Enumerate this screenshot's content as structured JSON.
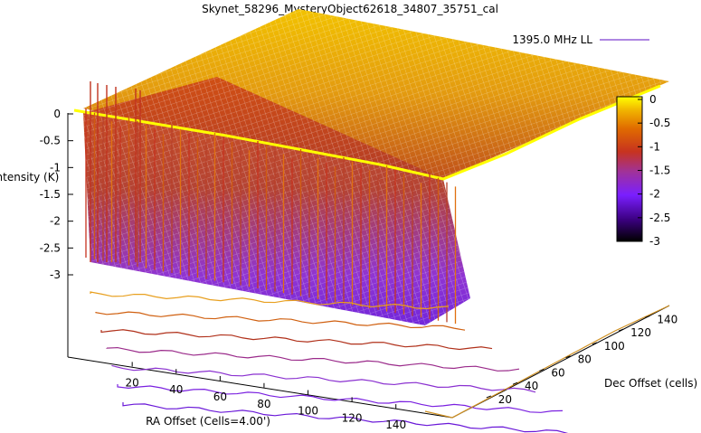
{
  "chart_data": {
    "type": "surface",
    "title": "Skynet_58296_MysteryObject62618_34807_35751_cal",
    "zlabel": "Intensity (K)",
    "xlabel": "RA Offset (Cells=4.00')",
    "ylabel": "Dec Offset (cells)",
    "legend_entry": "1395.0 MHz LL",
    "legend_color": "#7d3fd1",
    "z_ticks": [
      "0",
      "-0.5",
      "-1",
      "-1.5",
      "-2",
      "-2.5",
      "-3"
    ],
    "z_range": [
      -3,
      0
    ],
    "x_ticks": [
      "20",
      "40",
      "60",
      "80",
      "100",
      "120",
      "140"
    ],
    "x_range": [
      1,
      150
    ],
    "y_ticks": [
      "20",
      "40",
      "60",
      "80",
      "100",
      "120",
      "140"
    ],
    "y_range": [
      1,
      150
    ],
    "colorbar_ticks": [
      "0",
      "-0.5",
      "-1",
      "-1.5",
      "-2",
      "-2.5",
      "-3"
    ],
    "colorbar_range": [
      -3,
      0
    ],
    "colormap": [
      "#000000",
      "#3b0080",
      "#7a1fff",
      "#a0329a",
      "#c7331f",
      "#e06b00",
      "#f0b000",
      "#ffff00"
    ]
  }
}
